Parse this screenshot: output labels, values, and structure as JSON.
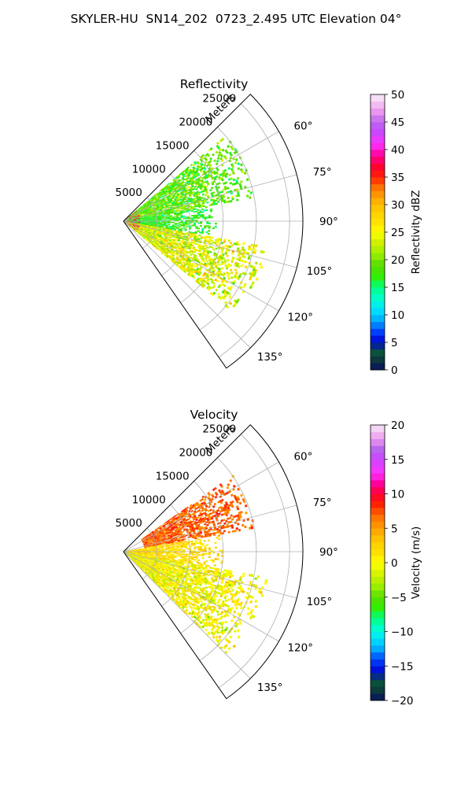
{
  "figure": {
    "title": "SKYLER-HU  SN14_202  0723_2.495 UTC Elevation 04°"
  },
  "chart_data": [
    {
      "type": "heatmap",
      "subtype": "polar-sector",
      "title": "Reflectivity",
      "radial_axis_label": "Meters",
      "radial_ticks": [
        5000,
        10000,
        15000,
        20000,
        25000
      ],
      "radial_tick_labels": [
        "5000",
        "10000",
        "15000",
        "20000",
        "25000"
      ],
      "radial_range": [
        0,
        27000
      ],
      "azimuth_range_deg": [
        45,
        145
      ],
      "azimuth_ticks_deg": [
        60,
        75,
        90,
        105,
        120,
        135
      ],
      "azimuth_tick_labels": [
        "60°",
        "75°",
        "90°",
        "105°",
        "120°",
        "135°"
      ],
      "grid": true,
      "colorbar": {
        "label": "Reflectivity dBZ",
        "range": [
          0,
          50
        ],
        "ticks": [
          0,
          5,
          10,
          15,
          20,
          25,
          30,
          35,
          40,
          45,
          50
        ],
        "tick_labels": [
          "0",
          "5",
          "10",
          "15",
          "20",
          "25",
          "30",
          "35",
          "40",
          "45",
          "50"
        ],
        "stops": [
          {
            "v": 0,
            "c": "#0a1060"
          },
          {
            "v": 2,
            "c": "#0d3b3b"
          },
          {
            "v": 3.5,
            "c": "#0a5a3a"
          },
          {
            "v": 5,
            "c": "#0000cc"
          },
          {
            "v": 7,
            "c": "#0044ff"
          },
          {
            "v": 9,
            "c": "#00aaff"
          },
          {
            "v": 11,
            "c": "#00e5ff"
          },
          {
            "v": 13,
            "c": "#00ffcc"
          },
          {
            "v": 15,
            "c": "#00ff80"
          },
          {
            "v": 17,
            "c": "#33ee00"
          },
          {
            "v": 19,
            "c": "#55dd00"
          },
          {
            "v": 21,
            "c": "#99ee00"
          },
          {
            "v": 23,
            "c": "#ccf000"
          },
          {
            "v": 25,
            "c": "#ffff00"
          },
          {
            "v": 27,
            "c": "#ffe000"
          },
          {
            "v": 29,
            "c": "#ffcc00"
          },
          {
            "v": 31,
            "c": "#ffaa00"
          },
          {
            "v": 33,
            "c": "#ff7700"
          },
          {
            "v": 35,
            "c": "#ff2200"
          },
          {
            "v": 37,
            "c": "#ff0033"
          },
          {
            "v": 39,
            "c": "#ff0099"
          },
          {
            "v": 41,
            "c": "#ff33ff"
          },
          {
            "v": 43,
            "c": "#cc44ff"
          },
          {
            "v": 45,
            "c": "#bb66ee"
          },
          {
            "v": 47,
            "c": "#ee99ee"
          },
          {
            "v": 49,
            "c": "#f5d5f5"
          },
          {
            "v": 50,
            "c": "#fbeefb"
          }
        ]
      },
      "field_regions": [
        {
          "az": [
            50,
            80
          ],
          "r": [
            0,
            20000
          ],
          "mean": 19,
          "spread": 4
        },
        {
          "az": [
            80,
            100
          ],
          "r": [
            0,
            14000
          ],
          "mean": 17,
          "spread": 3
        },
        {
          "az": [
            100,
            130
          ],
          "r": [
            0,
            22000
          ],
          "mean": 24,
          "spread": 5
        }
      ]
    },
    {
      "type": "heatmap",
      "subtype": "polar-sector",
      "title": "Velocity",
      "radial_axis_label": "Meters",
      "radial_ticks": [
        5000,
        10000,
        15000,
        20000,
        25000
      ],
      "radial_tick_labels": [
        "5000",
        "10000",
        "15000",
        "20000",
        "25000"
      ],
      "radial_range": [
        0,
        27000
      ],
      "azimuth_range_deg": [
        45,
        145
      ],
      "azimuth_ticks_deg": [
        60,
        75,
        90,
        105,
        120,
        135
      ],
      "azimuth_tick_labels": [
        "60°",
        "75°",
        "90°",
        "105°",
        "120°",
        "135°"
      ],
      "grid": true,
      "colorbar": {
        "label": "Velocity (m/s)",
        "range": [
          -20,
          20
        ],
        "ticks": [
          -20,
          -15,
          -10,
          -5,
          0,
          5,
          10,
          15,
          20
        ],
        "tick_labels": [
          "−20",
          "−15",
          "−10",
          "−5",
          "0",
          "5",
          "10",
          "15",
          "20"
        ],
        "stops": [
          {
            "v": -20,
            "c": "#0a1060"
          },
          {
            "v": -18.5,
            "c": "#0d3b3b"
          },
          {
            "v": -17,
            "c": "#0a5a3a"
          },
          {
            "v": -16,
            "c": "#0000cc"
          },
          {
            "v": -14,
            "c": "#0044ff"
          },
          {
            "v": -12.5,
            "c": "#00aaff"
          },
          {
            "v": -11,
            "c": "#00e5ff"
          },
          {
            "v": -9.5,
            "c": "#00ffcc"
          },
          {
            "v": -8,
            "c": "#00ff80"
          },
          {
            "v": -6.5,
            "c": "#33ee00"
          },
          {
            "v": -5,
            "c": "#55dd00"
          },
          {
            "v": -3.5,
            "c": "#99ee00"
          },
          {
            "v": -2,
            "c": "#ccf000"
          },
          {
            "v": 0,
            "c": "#ffff00"
          },
          {
            "v": 1.5,
            "c": "#ffe000"
          },
          {
            "v": 3,
            "c": "#ffcc00"
          },
          {
            "v": 4.5,
            "c": "#ffaa00"
          },
          {
            "v": 6.5,
            "c": "#ff7700"
          },
          {
            "v": 8.5,
            "c": "#ff2200"
          },
          {
            "v": 10,
            "c": "#ff0033"
          },
          {
            "v": 11.5,
            "c": "#ff0099"
          },
          {
            "v": 13,
            "c": "#ff33ff"
          },
          {
            "v": 15,
            "c": "#cc44ff"
          },
          {
            "v": 16.5,
            "c": "#bb66ee"
          },
          {
            "v": 18,
            "c": "#ee99ee"
          },
          {
            "v": 19.5,
            "c": "#f5d5f5"
          },
          {
            "v": 20,
            "c": "#fbeefb"
          }
        ]
      },
      "field_regions": [
        {
          "az": [
            55,
            80
          ],
          "r": [
            3000,
            20000
          ],
          "mean": 7,
          "spread": 2
        },
        {
          "az": [
            80,
            100
          ],
          "r": [
            0,
            15000
          ],
          "mean": 2,
          "spread": 2
        },
        {
          "az": [
            100,
            135
          ],
          "r": [
            0,
            22000
          ],
          "mean": 0,
          "spread": 3
        }
      ]
    }
  ]
}
